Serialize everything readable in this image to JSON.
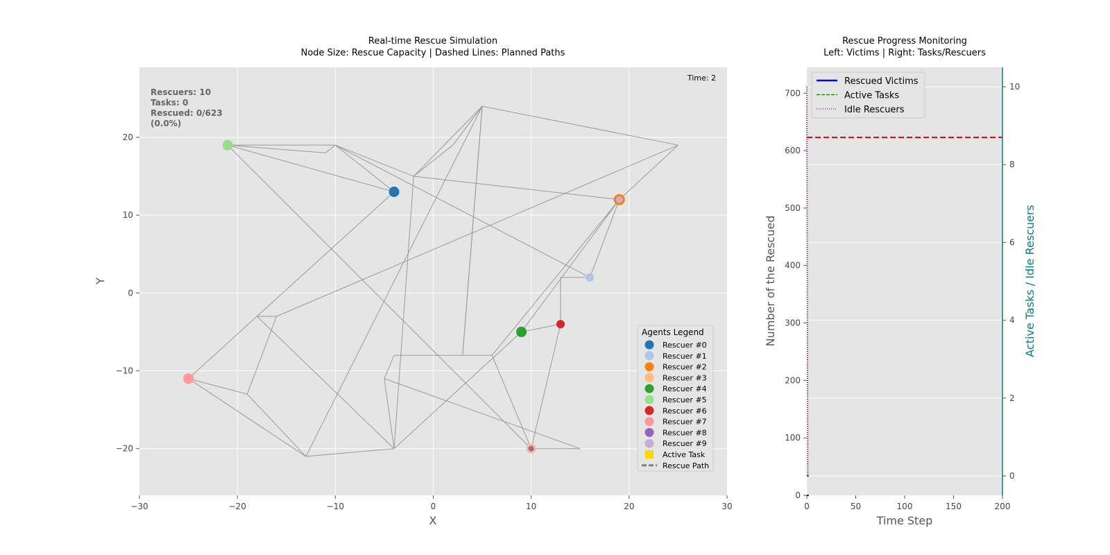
{
  "chart_data": [
    {
      "type": "scatter",
      "title_line1": "Real-time Rescue Simulation",
      "title_line2": "Node Size: Rescue Capacity | Dashed Lines: Planned Paths",
      "xlabel": "X",
      "ylabel": "Y",
      "xlim": [
        -30,
        30
      ],
      "ylim": [
        -26,
        29
      ],
      "xticks": [
        -30,
        -20,
        -10,
        0,
        10,
        20,
        30
      ],
      "yticks": [
        -20,
        -10,
        0,
        10,
        20
      ],
      "tick_labels_x": [
        "−30",
        "−20",
        "−10",
        "0",
        "10",
        "20",
        "30"
      ],
      "tick_labels_y": [
        "−20",
        "−10",
        "0",
        "10",
        "20"
      ],
      "grid": true,
      "time_label": "Time: 2",
      "stats": [
        "Rescuers: 10",
        "Tasks: 0",
        "Rescued: 0/623",
        "(0.0%)"
      ],
      "edges": [
        [
          [
            -21,
            19
          ],
          [
            -10,
            19
          ]
        ],
        [
          [
            -21,
            19
          ],
          [
            -11,
            18
          ]
        ],
        [
          [
            -11,
            18
          ],
          [
            -10,
            19
          ]
        ],
        [
          [
            -10,
            19
          ],
          [
            -4,
            13
          ]
        ],
        [
          [
            -21,
            19
          ],
          [
            -4,
            13
          ]
        ],
        [
          [
            -10,
            19
          ],
          [
            -2,
            15
          ]
        ],
        [
          [
            -2,
            15
          ],
          [
            19,
            12
          ]
        ],
        [
          [
            -2,
            15
          ],
          [
            2,
            19
          ]
        ],
        [
          [
            2,
            19
          ],
          [
            5,
            24
          ]
        ],
        [
          [
            -2,
            15
          ],
          [
            5,
            24
          ]
        ],
        [
          [
            5,
            24
          ],
          [
            25,
            19
          ]
        ],
        [
          [
            25,
            19
          ],
          [
            19,
            12
          ]
        ],
        [
          [
            5,
            24
          ],
          [
            3,
            -8
          ]
        ],
        [
          [
            5,
            24
          ],
          [
            -13,
            -21
          ]
        ],
        [
          [
            -21,
            19
          ],
          [
            10,
            -20
          ]
        ],
        [
          [
            -10,
            19
          ],
          [
            16,
            2
          ]
        ],
        [
          [
            -2,
            15
          ],
          [
            -4,
            -20
          ]
        ],
        [
          [
            -25,
            -11
          ],
          [
            -4,
            13
          ]
        ],
        [
          [
            -18,
            -3
          ],
          [
            -16,
            -3
          ]
        ],
        [
          [
            -18,
            -3
          ],
          [
            -4,
            -20
          ]
        ],
        [
          [
            -16,
            -3
          ],
          [
            25,
            19
          ]
        ],
        [
          [
            -16,
            -3
          ],
          [
            -19,
            -13
          ]
        ],
        [
          [
            -19,
            -13
          ],
          [
            -25,
            -11
          ]
        ],
        [
          [
            -19,
            -13
          ],
          [
            -13,
            -21
          ]
        ],
        [
          [
            -25,
            -11
          ],
          [
            -13,
            -21
          ]
        ],
        [
          [
            -13,
            -21
          ],
          [
            -4,
            -20
          ]
        ],
        [
          [
            -4,
            -20
          ],
          [
            9,
            -5
          ]
        ],
        [
          [
            9,
            -5
          ],
          [
            19,
            12
          ]
        ],
        [
          [
            9,
            -5
          ],
          [
            13,
            -4
          ]
        ],
        [
          [
            13,
            -4
          ],
          [
            13,
            2
          ]
        ],
        [
          [
            13,
            2
          ],
          [
            16,
            2
          ]
        ],
        [
          [
            16,
            2
          ],
          [
            19,
            12
          ]
        ],
        [
          [
            13,
            -4
          ],
          [
            10,
            -20
          ]
        ],
        [
          [
            10,
            -20
          ],
          [
            15,
            -20
          ]
        ],
        [
          [
            10,
            -20
          ],
          [
            6,
            -8
          ]
        ],
        [
          [
            6,
            -8
          ],
          [
            -4,
            -8
          ]
        ],
        [
          [
            -4,
            -8
          ],
          [
            -5,
            -11
          ]
        ],
        [
          [
            -5,
            -11
          ],
          [
            -4,
            -20
          ]
        ],
        [
          [
            -5,
            -11
          ],
          [
            15,
            -20
          ]
        ],
        [
          [
            6,
            -8
          ],
          [
            19,
            12
          ]
        ],
        [
          [
            3,
            -8
          ],
          [
            5,
            24
          ]
        ]
      ],
      "agents": [
        {
          "name": "Rescuer #0",
          "color": "#1f77b4",
          "x": -4,
          "y": 13
        },
        {
          "name": "Rescuer #1",
          "color": "#aec7e8",
          "x": 16,
          "y": 2
        },
        {
          "name": "Rescuer #2",
          "color": "#ff7f0e",
          "x": 19,
          "y": 12
        },
        {
          "name": "Rescuer #3",
          "color": "#ffbb78",
          "x": 10,
          "y": -20
        },
        {
          "name": "Rescuer #4",
          "color": "#2ca02c",
          "x": 9,
          "y": -5
        },
        {
          "name": "Rescuer #5",
          "color": "#98df8a",
          "x": -21,
          "y": 19
        },
        {
          "name": "Rescuer #6",
          "color": "#d62728",
          "x": 13,
          "y": -4
        },
        {
          "name": "Rescuer #7",
          "color": "#ff9896",
          "x": -25,
          "y": -11
        },
        {
          "name": "Rescuer #8",
          "color": "#9467bd",
          "x": 10,
          "y": -20
        },
        {
          "name": "Rescuer #9",
          "color": "#c5b0d5",
          "x": 19,
          "y": 12
        }
      ],
      "legend_title": "Agents Legend",
      "legend_extra": [
        {
          "name": "Active Task",
          "color": "#ffd700"
        },
        {
          "name": "Rescue Path",
          "color": "#808080"
        }
      ]
    },
    {
      "type": "line",
      "title_line1": "Rescue Progress Monitoring",
      "title_line2": "Left: Victims | Right: Tasks/Rescuers",
      "xlabel": "Time Step",
      "ylabel": "Number of the Rescued",
      "ylabel_right": "Active Tasks / Idle Rescuers",
      "xlim": [
        0,
        200
      ],
      "ylim": [
        0,
        745
      ],
      "ylim_right": [
        -0.5,
        10.5
      ],
      "xticks": [
        0,
        50,
        100,
        150,
        200
      ],
      "yticks": [
        0,
        100,
        200,
        300,
        400,
        500,
        600,
        700
      ],
      "yticks_right": [
        0,
        2,
        4,
        6,
        8,
        10
      ],
      "target_line": 623,
      "right_grid": [
        0,
        2,
        4,
        6,
        8,
        10
      ],
      "series": [
        {
          "name": "Rescued Victims",
          "color": "#0000ff",
          "x": [
            0,
            1,
            2
          ],
          "values": [
            0,
            0,
            0
          ]
        },
        {
          "name": "Active Tasks",
          "color": "#008000",
          "x": [
            0,
            1,
            2
          ],
          "values": [
            0,
            0,
            0
          ]
        },
        {
          "name": "Idle Rescuers",
          "color": "#800080",
          "x": [
            0,
            1,
            2
          ],
          "values": [
            10,
            0,
            0
          ]
        }
      ],
      "right_axis_color": "#008080",
      "target_color": "#ff0000"
    }
  ]
}
